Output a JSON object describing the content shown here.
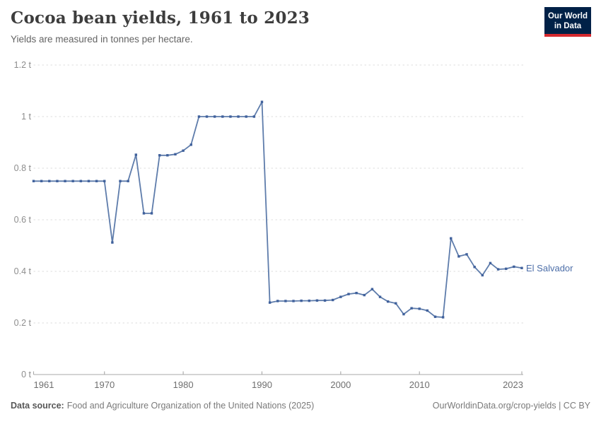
{
  "header": {
    "title": "Cocoa bean yields, 1961 to 2023",
    "subtitle": "Yields are measured in tonnes per hectare."
  },
  "logo": {
    "line1": "Our World",
    "line2": "in Data",
    "bg_color": "#002147",
    "accent_color": "#d5292f"
  },
  "chart_data": {
    "type": "line",
    "title": "Cocoa bean yields, 1961 to 2023",
    "ylabel": "tonnes per hectare",
    "xlabel": "",
    "unit": "t",
    "xlim": [
      1961,
      2023
    ],
    "ylim": [
      0,
      1.2
    ],
    "grid": "horizontal dashed",
    "legend_position": "end-of-line label",
    "x": [
      1961,
      1962,
      1963,
      1964,
      1965,
      1966,
      1967,
      1968,
      1969,
      1970,
      1971,
      1972,
      1973,
      1974,
      1975,
      1976,
      1977,
      1978,
      1979,
      1980,
      1981,
      1982,
      1983,
      1984,
      1985,
      1986,
      1987,
      1988,
      1989,
      1990,
      1991,
      1992,
      1993,
      1994,
      1995,
      1996,
      1997,
      1998,
      1999,
      2000,
      2001,
      2002,
      2003,
      2004,
      2005,
      2006,
      2007,
      2008,
      2009,
      2010,
      2011,
      2012,
      2013,
      2014,
      2015,
      2016,
      2017,
      2018,
      2019,
      2020,
      2021,
      2022,
      2023
    ],
    "series": [
      {
        "name": "El Salvador",
        "color": "#4c6ea8",
        "line_color": "#5e7cab",
        "marker_color": "#40619c",
        "values": [
          0.75,
          0.75,
          0.75,
          0.75,
          0.75,
          0.75,
          0.75,
          0.75,
          0.75,
          0.75,
          0.512,
          0.75,
          0.75,
          0.852,
          0.625,
          0.625,
          0.85,
          0.85,
          0.854,
          0.868,
          0.891,
          1.0,
          1.0,
          1.0,
          1.0,
          1.0,
          1.0,
          1.0,
          1.0,
          1.057,
          0.279,
          0.285,
          0.285,
          0.285,
          0.286,
          0.286,
          0.287,
          0.287,
          0.289,
          0.301,
          0.312,
          0.316,
          0.308,
          0.331,
          0.301,
          0.283,
          0.276,
          0.234,
          0.257,
          0.255,
          0.248,
          0.224,
          0.222,
          0.528,
          0.458,
          0.466,
          0.417,
          0.385,
          0.432,
          0.408,
          0.41,
          0.418,
          0.413
        ]
      }
    ],
    "y_ticks": [
      {
        "value": 0,
        "label": "0 t"
      },
      {
        "value": 0.2,
        "label": "0.2 t"
      },
      {
        "value": 0.4,
        "label": "0.4 t"
      },
      {
        "value": 0.6,
        "label": "0.6 t"
      },
      {
        "value": 0.8,
        "label": "0.8 t"
      },
      {
        "value": 1.0,
        "label": "1 t"
      },
      {
        "value": 1.2,
        "label": "1.2 t"
      }
    ],
    "x_ticks": [
      {
        "year": 1961,
        "label": "1961"
      },
      {
        "year": 1970,
        "label": "1970"
      },
      {
        "year": 1980,
        "label": "1980"
      },
      {
        "year": 1990,
        "label": "1990"
      },
      {
        "year": 2000,
        "label": "2000"
      },
      {
        "year": 2010,
        "label": "2010"
      },
      {
        "year": 2023,
        "label": "2023"
      }
    ]
  },
  "footer": {
    "data_source_label": "Data source:",
    "data_source_value": "Food and Agriculture Organization of the United Nations (2025)",
    "site_credit": "OurWorldinData.org/crop-yields | CC BY"
  }
}
